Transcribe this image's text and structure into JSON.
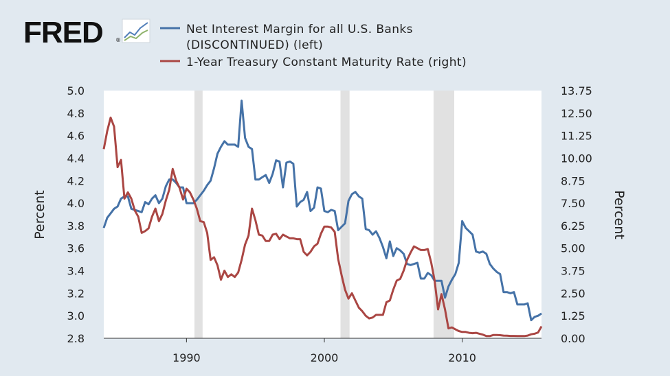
{
  "logo": {
    "text": "FRED",
    "icon": "fred-chart-icon"
  },
  "colors": {
    "background": "#e1e9f0",
    "plot": "#ffffff",
    "left_series": "#4572a7",
    "right_series": "#aa4643",
    "recession": "#e1e1e1"
  },
  "chart_data": {
    "type": "line",
    "xlabel": "",
    "x_ticks": [
      "1990",
      "2000",
      "2010"
    ],
    "x_range": [
      1984.0,
      2015.75
    ],
    "recessions": [
      [
        1990.58,
        1991.17
      ],
      [
        2001.17,
        2001.83
      ],
      [
        2007.92,
        2009.42
      ]
    ],
    "left_axis": {
      "label": "Percent",
      "ylim": [
        2.8,
        5.0
      ],
      "ticks": [
        "2.8",
        "3.0",
        "3.2",
        "3.4",
        "3.6",
        "3.8",
        "4.0",
        "4.2",
        "4.4",
        "4.6",
        "4.8",
        "5.0"
      ]
    },
    "right_axis": {
      "label": "Percent",
      "ylim": [
        0.0,
        13.75
      ],
      "ticks": [
        "0.00",
        "1.25",
        "2.50",
        "3.75",
        "5.00",
        "6.25",
        "7.50",
        "8.75",
        "10.00",
        "11.25",
        "12.50",
        "13.75"
      ]
    },
    "series": [
      {
        "name": "Net Interest Margin for all U.S. Banks (DISCONTINUED) (left)",
        "legend_line1": "Net Interest Margin for all U.S. Banks",
        "legend_line2": "(DISCONTINUED) (left)",
        "axis": "left",
        "points": [
          [
            1984.0,
            3.78
          ],
          [
            1984.25,
            3.87
          ],
          [
            1984.5,
            3.91
          ],
          [
            1984.75,
            3.95
          ],
          [
            1985.0,
            3.97
          ],
          [
            1985.25,
            4.04
          ],
          [
            1985.5,
            4.06
          ],
          [
            1985.75,
            4.06
          ],
          [
            1986.0,
            3.95
          ],
          [
            1986.25,
            3.94
          ],
          [
            1986.5,
            3.93
          ],
          [
            1986.75,
            3.92
          ],
          [
            1987.0,
            4.01
          ],
          [
            1987.25,
            3.99
          ],
          [
            1987.5,
            4.04
          ],
          [
            1987.75,
            4.07
          ],
          [
            1988.0,
            4.0
          ],
          [
            1988.25,
            4.04
          ],
          [
            1988.5,
            4.15
          ],
          [
            1988.75,
            4.21
          ],
          [
            1989.0,
            4.21
          ],
          [
            1989.25,
            4.18
          ],
          [
            1989.5,
            4.14
          ],
          [
            1989.75,
            4.14
          ],
          [
            1990.0,
            4.0
          ],
          [
            1990.25,
            4.0
          ],
          [
            1990.5,
            4.0
          ],
          [
            1990.75,
            4.03
          ],
          [
            1991.0,
            4.07
          ],
          [
            1991.25,
            4.11
          ],
          [
            1991.5,
            4.16
          ],
          [
            1991.75,
            4.2
          ],
          [
            1992.0,
            4.31
          ],
          [
            1992.25,
            4.44
          ],
          [
            1992.5,
            4.5
          ],
          [
            1992.75,
            4.55
          ],
          [
            1993.0,
            4.52
          ],
          [
            1993.25,
            4.52
          ],
          [
            1993.5,
            4.52
          ],
          [
            1993.75,
            4.5
          ],
          [
            1994.0,
            4.91
          ],
          [
            1994.25,
            4.58
          ],
          [
            1994.5,
            4.5
          ],
          [
            1994.75,
            4.48
          ],
          [
            1995.0,
            4.21
          ],
          [
            1995.25,
            4.21
          ],
          [
            1995.5,
            4.23
          ],
          [
            1995.75,
            4.25
          ],
          [
            1996.0,
            4.18
          ],
          [
            1996.25,
            4.26
          ],
          [
            1996.5,
            4.38
          ],
          [
            1996.75,
            4.37
          ],
          [
            1997.0,
            4.14
          ],
          [
            1997.25,
            4.36
          ],
          [
            1997.5,
            4.37
          ],
          [
            1997.75,
            4.35
          ],
          [
            1998.0,
            3.97
          ],
          [
            1998.25,
            4.01
          ],
          [
            1998.5,
            4.03
          ],
          [
            1998.75,
            4.1
          ],
          [
            1999.0,
            3.93
          ],
          [
            1999.25,
            3.96
          ],
          [
            1999.5,
            4.14
          ],
          [
            1999.75,
            4.13
          ],
          [
            2000.0,
            3.93
          ],
          [
            2000.25,
            3.92
          ],
          [
            2000.5,
            3.94
          ],
          [
            2000.75,
            3.93
          ],
          [
            2001.0,
            3.76
          ],
          [
            2001.25,
            3.79
          ],
          [
            2001.5,
            3.82
          ],
          [
            2001.75,
            4.02
          ],
          [
            2002.0,
            4.08
          ],
          [
            2002.25,
            4.1
          ],
          [
            2002.5,
            4.06
          ],
          [
            2002.75,
            4.04
          ],
          [
            2003.0,
            3.77
          ],
          [
            2003.25,
            3.76
          ],
          [
            2003.5,
            3.72
          ],
          [
            2003.75,
            3.75
          ],
          [
            2004.0,
            3.69
          ],
          [
            2004.25,
            3.61
          ],
          [
            2004.5,
            3.51
          ],
          [
            2004.75,
            3.66
          ],
          [
            2005.0,
            3.53
          ],
          [
            2005.25,
            3.6
          ],
          [
            2005.5,
            3.58
          ],
          [
            2005.75,
            3.55
          ],
          [
            2006.0,
            3.46
          ],
          [
            2006.25,
            3.45
          ],
          [
            2006.5,
            3.46
          ],
          [
            2006.75,
            3.47
          ],
          [
            2007.0,
            3.33
          ],
          [
            2007.25,
            3.33
          ],
          [
            2007.5,
            3.38
          ],
          [
            2007.75,
            3.36
          ],
          [
            2008.0,
            3.31
          ],
          [
            2008.25,
            3.31
          ],
          [
            2008.5,
            3.31
          ],
          [
            2008.75,
            3.16
          ],
          [
            2009.0,
            3.26
          ],
          [
            2009.25,
            3.32
          ],
          [
            2009.5,
            3.37
          ],
          [
            2009.75,
            3.47
          ],
          [
            2010.0,
            3.84
          ],
          [
            2010.25,
            3.78
          ],
          [
            2010.5,
            3.75
          ],
          [
            2010.75,
            3.72
          ],
          [
            2011.0,
            3.57
          ],
          [
            2011.25,
            3.56
          ],
          [
            2011.5,
            3.57
          ],
          [
            2011.75,
            3.55
          ],
          [
            2012.0,
            3.46
          ],
          [
            2012.25,
            3.42
          ],
          [
            2012.5,
            3.39
          ],
          [
            2012.75,
            3.37
          ],
          [
            2013.0,
            3.21
          ],
          [
            2013.25,
            3.21
          ],
          [
            2013.5,
            3.2
          ],
          [
            2013.75,
            3.21
          ],
          [
            2014.0,
            3.1
          ],
          [
            2014.25,
            3.1
          ],
          [
            2014.5,
            3.1
          ],
          [
            2014.75,
            3.11
          ],
          [
            2015.0,
            2.96
          ],
          [
            2015.25,
            2.99
          ],
          [
            2015.5,
            3.0
          ],
          [
            2015.75,
            3.02
          ]
        ]
      },
      {
        "name": "1-Year Treasury Constant Maturity Rate (right)",
        "legend_line1": "1-Year Treasury Constant Maturity Rate (right)",
        "axis": "right",
        "points": [
          [
            1984.0,
            10.5
          ],
          [
            1984.25,
            11.5
          ],
          [
            1984.5,
            12.25
          ],
          [
            1984.75,
            11.75
          ],
          [
            1985.0,
            9.5
          ],
          [
            1985.25,
            9.9
          ],
          [
            1985.5,
            7.75
          ],
          [
            1985.75,
            8.1
          ],
          [
            1986.0,
            7.75
          ],
          [
            1986.25,
            7.1
          ],
          [
            1986.5,
            6.75
          ],
          [
            1986.75,
            5.85
          ],
          [
            1987.0,
            5.95
          ],
          [
            1987.25,
            6.1
          ],
          [
            1987.5,
            6.75
          ],
          [
            1987.75,
            7.2
          ],
          [
            1988.0,
            6.5
          ],
          [
            1988.25,
            6.9
          ],
          [
            1988.5,
            7.65
          ],
          [
            1988.75,
            8.25
          ],
          [
            1989.0,
            9.4
          ],
          [
            1989.25,
            8.75
          ],
          [
            1989.5,
            8.35
          ],
          [
            1989.75,
            7.7
          ],
          [
            1990.0,
            8.3
          ],
          [
            1990.25,
            8.1
          ],
          [
            1990.5,
            7.7
          ],
          [
            1990.75,
            7.2
          ],
          [
            1991.0,
            6.5
          ],
          [
            1991.25,
            6.45
          ],
          [
            1991.5,
            5.85
          ],
          [
            1991.75,
            4.35
          ],
          [
            1992.0,
            4.5
          ],
          [
            1992.25,
            4.05
          ],
          [
            1992.5,
            3.25
          ],
          [
            1992.75,
            3.75
          ],
          [
            1993.0,
            3.4
          ],
          [
            1993.25,
            3.55
          ],
          [
            1993.5,
            3.4
          ],
          [
            1993.75,
            3.65
          ],
          [
            1994.0,
            4.35
          ],
          [
            1994.25,
            5.2
          ],
          [
            1994.5,
            5.7
          ],
          [
            1994.75,
            7.2
          ],
          [
            1995.0,
            6.55
          ],
          [
            1995.25,
            5.75
          ],
          [
            1995.5,
            5.7
          ],
          [
            1995.75,
            5.4
          ],
          [
            1996.0,
            5.4
          ],
          [
            1996.25,
            5.75
          ],
          [
            1996.5,
            5.8
          ],
          [
            1996.75,
            5.5
          ],
          [
            1997.0,
            5.75
          ],
          [
            1997.25,
            5.65
          ],
          [
            1997.5,
            5.55
          ],
          [
            1997.75,
            5.55
          ],
          [
            1998.0,
            5.5
          ],
          [
            1998.25,
            5.5
          ],
          [
            1998.5,
            4.8
          ],
          [
            1998.75,
            4.6
          ],
          [
            1999.0,
            4.8
          ],
          [
            1999.25,
            5.1
          ],
          [
            1999.5,
            5.25
          ],
          [
            1999.75,
            5.8
          ],
          [
            2000.0,
            6.2
          ],
          [
            2000.25,
            6.2
          ],
          [
            2000.5,
            6.15
          ],
          [
            2000.75,
            5.9
          ],
          [
            2001.0,
            4.4
          ],
          [
            2001.25,
            3.5
          ],
          [
            2001.5,
            2.7
          ],
          [
            2001.75,
            2.2
          ],
          [
            2002.0,
            2.5
          ],
          [
            2002.25,
            2.1
          ],
          [
            2002.5,
            1.7
          ],
          [
            2002.75,
            1.5
          ],
          [
            2003.0,
            1.25
          ],
          [
            2003.25,
            1.1
          ],
          [
            2003.5,
            1.15
          ],
          [
            2003.75,
            1.3
          ],
          [
            2004.0,
            1.3
          ],
          [
            2004.25,
            1.3
          ],
          [
            2004.5,
            2.0
          ],
          [
            2004.75,
            2.1
          ],
          [
            2005.0,
            2.7
          ],
          [
            2005.25,
            3.2
          ],
          [
            2005.5,
            3.3
          ],
          [
            2005.75,
            3.75
          ],
          [
            2006.0,
            4.35
          ],
          [
            2006.25,
            4.75
          ],
          [
            2006.5,
            5.1
          ],
          [
            2006.75,
            5.0
          ],
          [
            2007.0,
            4.9
          ],
          [
            2007.25,
            4.9
          ],
          [
            2007.5,
            4.95
          ],
          [
            2007.75,
            4.2
          ],
          [
            2008.0,
            3.2
          ],
          [
            2008.25,
            1.6
          ],
          [
            2008.5,
            2.45
          ],
          [
            2008.75,
            1.6
          ],
          [
            2009.0,
            0.55
          ],
          [
            2009.25,
            0.6
          ],
          [
            2009.5,
            0.5
          ],
          [
            2009.75,
            0.4
          ],
          [
            2010.0,
            0.35
          ],
          [
            2010.25,
            0.35
          ],
          [
            2010.5,
            0.3
          ],
          [
            2010.75,
            0.28
          ],
          [
            2011.0,
            0.3
          ],
          [
            2011.25,
            0.25
          ],
          [
            2011.5,
            0.2
          ],
          [
            2011.75,
            0.12
          ],
          [
            2012.0,
            0.12
          ],
          [
            2012.25,
            0.18
          ],
          [
            2012.5,
            0.18
          ],
          [
            2012.75,
            0.17
          ],
          [
            2013.0,
            0.15
          ],
          [
            2013.25,
            0.14
          ],
          [
            2013.5,
            0.13
          ],
          [
            2013.75,
            0.13
          ],
          [
            2014.0,
            0.12
          ],
          [
            2014.25,
            0.12
          ],
          [
            2014.5,
            0.12
          ],
          [
            2014.75,
            0.15
          ],
          [
            2015.0,
            0.22
          ],
          [
            2015.25,
            0.25
          ],
          [
            2015.5,
            0.32
          ],
          [
            2015.75,
            0.66
          ]
        ]
      }
    ]
  }
}
